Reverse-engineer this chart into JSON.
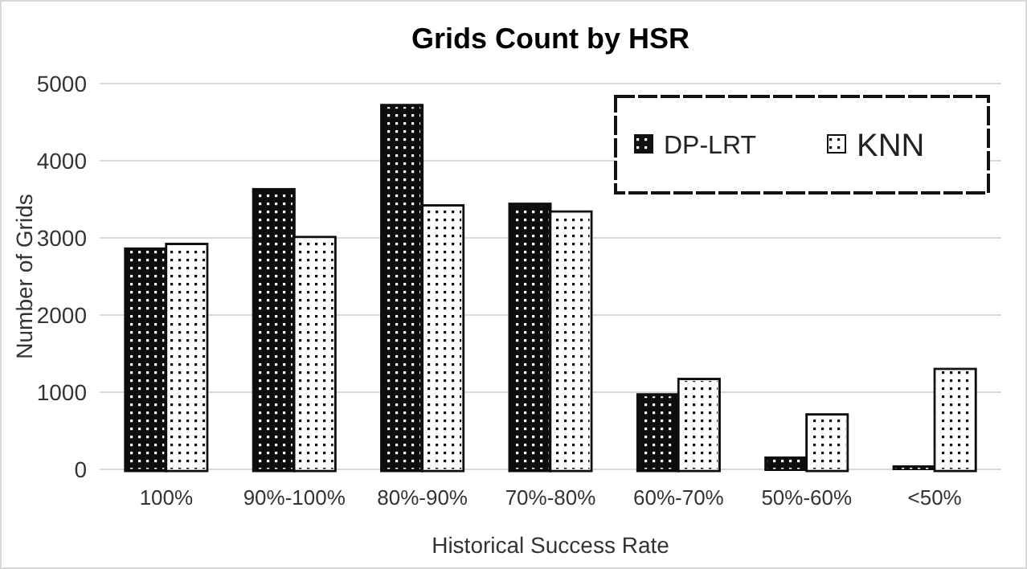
{
  "chart_data": {
    "type": "bar",
    "title": "Grids Count by HSR",
    "xlabel": "Historical Success Rate",
    "ylabel": "Number of Grids",
    "categories": [
      "100%",
      "90%-100%",
      "80%-90%",
      "70%-80%",
      "60%-70%",
      "50%-60%",
      "<50%"
    ],
    "series": [
      {
        "name": "DP-LRT",
        "color": "#111111",
        "values": [
          2840,
          3610,
          4700,
          3420,
          950,
          150,
          40
        ]
      },
      {
        "name": "KNN",
        "color": "#ffffff",
        "values": [
          2900,
          2990,
          3400,
          3320,
          1150,
          690,
          1280
        ]
      }
    ],
    "ylim": [
      0,
      5000
    ],
    "yticks": [
      0,
      1000,
      2000,
      3000,
      4000,
      5000
    ],
    "grid": "y",
    "legend": "top right"
  }
}
